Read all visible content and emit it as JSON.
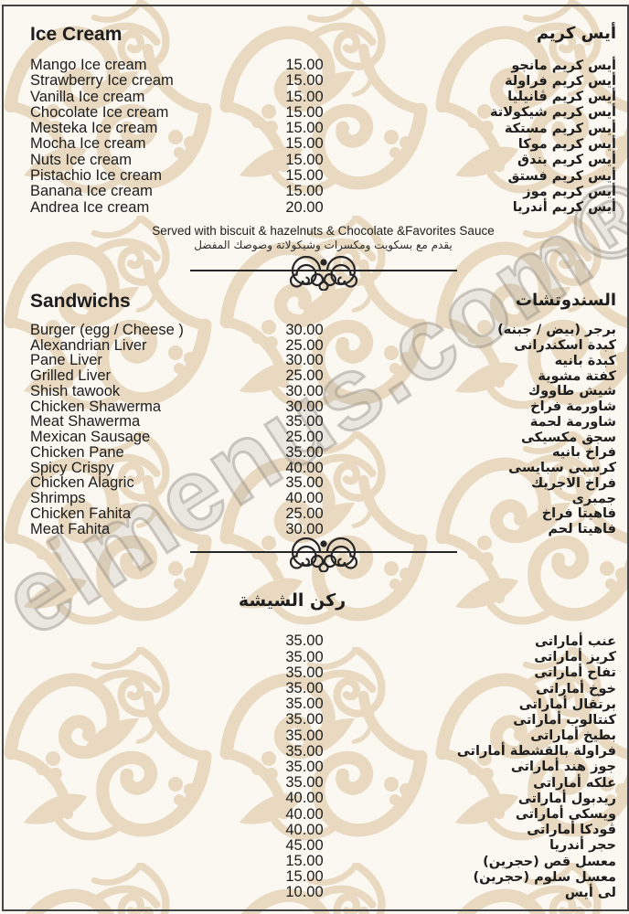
{
  "page": {
    "watermark": "elmenus.com®",
    "colors": {
      "pattern_beige": "#e8d9c0",
      "paper": "#fbf8f1",
      "text": "#1d1d1d",
      "border": "#454545",
      "watermark_gray": "#969086"
    },
    "icons": [
      "flourish-divider-icon"
    ]
  },
  "sections": {
    "ice_cream": {
      "title_en": "Ice Cream",
      "title_ar": "أيس كريم",
      "items": [
        {
          "en": "Mango Ice cream",
          "price": "15.00",
          "ar": "أيس كريم مانجو"
        },
        {
          "en": "Strawberry Ice cream",
          "price": "15.00",
          "ar": "أيس كريم فراولة"
        },
        {
          "en": "Vanilla Ice cream",
          "price": "15.00",
          "ar": "أيس كريم ڤانيليا"
        },
        {
          "en": "Chocolate Ice cream",
          "price": "15.00",
          "ar": "أيس كريم شيكولاتة"
        },
        {
          "en": "Mesteka Ice cream",
          "price": "15.00",
          "ar": "أيس كريم مستكة"
        },
        {
          "en": "Mocha Ice cream",
          "price": "15.00",
          "ar": "أيس كريم موكا"
        },
        {
          "en": "Nuts Ice cream",
          "price": "15.00",
          "ar": "أيس كريم بندق"
        },
        {
          "en": "Pistachio Ice cream",
          "price": "15.00",
          "ar": "أيس كريم فستق"
        },
        {
          "en": "Banana Ice cream",
          "price": "15.00",
          "ar": "أيس كريم موز"
        },
        {
          "en": "Andrea Ice cream",
          "price": "20.00",
          "ar": "أيس كريم أندريا"
        }
      ],
      "note_en": "Served with biscuit & hazelnuts & Chocolate &Favorites Sauce",
      "note_ar": "يقدم مع بسكويت ومكسرات وشيكولاتة وصوصك المفضل"
    },
    "sandwiches": {
      "title_en": "Sandwichs",
      "title_ar": "السندوتشات",
      "items": [
        {
          "en": "Burger (egg / Cheese )",
          "price": "30.00",
          "ar": "برجر (بيض / جبنه)"
        },
        {
          "en": "Alexandrian Liver",
          "price": "25.00",
          "ar": "كبدة اسكندرانى"
        },
        {
          "en": "Pane Liver",
          "price": "30.00",
          "ar": "كبدة بانيه"
        },
        {
          "en": "Grilled Liver",
          "price": "25.00",
          "ar": "كفتة مشوية"
        },
        {
          "en": "Shish tawook",
          "price": "30.00",
          "ar": "شيش طاووك"
        },
        {
          "en": "Chicken Shawerma",
          "price": "30.00",
          "ar": "شاورمة فراخ"
        },
        {
          "en": "Meat Shawerma",
          "price": "35.00",
          "ar": "شاورمة لحمة"
        },
        {
          "en": "Mexican Sausage",
          "price": "25.00",
          "ar": "سجق مكسيكى"
        },
        {
          "en": "Chicken Pane",
          "price": "35.00",
          "ar": "فراخ بانيه"
        },
        {
          "en": "Spicy Crispy",
          "price": "40.00",
          "ar": "كرسبى سبايسى"
        },
        {
          "en": "Chicken Alagric",
          "price": "35.00",
          "ar": "فراخ الاجريك"
        },
        {
          "en": "Shrimps",
          "price": "40.00",
          "ar": "جمبرى"
        },
        {
          "en": "Chicken Fahita",
          "price": "25.00",
          "ar": "فاهيتا فراخ"
        },
        {
          "en": "Meat Fahita",
          "price": "30.00",
          "ar": "فاهيتا لحم"
        }
      ]
    },
    "shisha": {
      "title_ar": "ركن الشيشة",
      "items": [
        {
          "en": "",
          "price": "35.00",
          "ar": "عنب أماراتى"
        },
        {
          "en": "",
          "price": "35.00",
          "ar": "كريز أماراتى"
        },
        {
          "en": "",
          "price": "35.00",
          "ar": "تفاح أماراتى"
        },
        {
          "en": "",
          "price": "35.00",
          "ar": "خوخ أماراتى"
        },
        {
          "en": "",
          "price": "35.00",
          "ar": "برتقال أماراتى"
        },
        {
          "en": "",
          "price": "35.00",
          "ar": "كنتالوب أماراتى"
        },
        {
          "en": "",
          "price": "35.00",
          "ar": "بطيخ أماراتى"
        },
        {
          "en": "",
          "price": "35.00",
          "ar": "فراولة بالقشطة أماراتى"
        },
        {
          "en": "",
          "price": "35.00",
          "ar": "جوز هند أماراتى"
        },
        {
          "en": "",
          "price": "35.00",
          "ar": "علكه أماراتى"
        },
        {
          "en": "",
          "price": "40.00",
          "ar": "ريدبول أماراتى"
        },
        {
          "en": "",
          "price": "40.00",
          "ar": "ويسكى أماراتى"
        },
        {
          "en": "",
          "price": "40.00",
          "ar": "ڤودكا أماراتى"
        },
        {
          "en": "",
          "price": "45.00",
          "ar": "حجر أندريا"
        },
        {
          "en": "",
          "price": "15.00",
          "ar": "معسل قص (حجرين)"
        },
        {
          "en": "",
          "price": "15.00",
          "ar": "معسل سلوم (حجرين)"
        },
        {
          "en": "",
          "price": "10.00",
          "ar": "لى أيس"
        }
      ]
    }
  }
}
